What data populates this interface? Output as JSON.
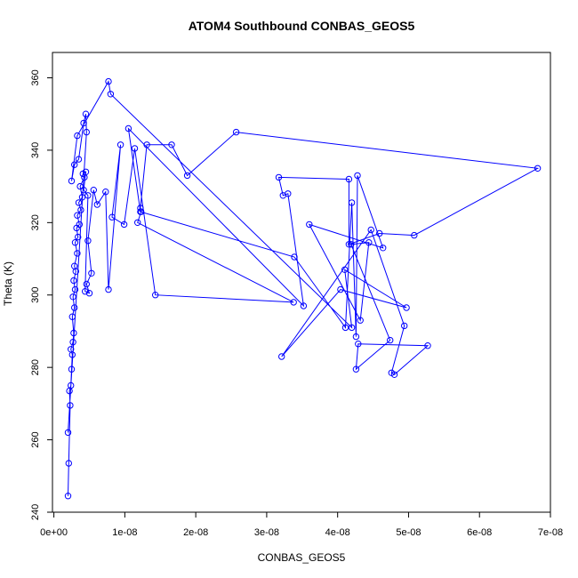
{
  "chart_data": {
    "type": "line",
    "title": "ATOM4 Southbound CONBAS_GEOS5",
    "xlabel": "CONBAS_GEOS5",
    "ylabel": "Theta (K)",
    "xlim": [
      -2e-10,
      7e-08
    ],
    "ylim": [
      240,
      367
    ],
    "xticks": [
      0,
      1e-08,
      2e-08,
      3e-08,
      4e-08,
      5e-08,
      6e-08,
      7e-08
    ],
    "xtick_labels": [
      "0e+00",
      "1e-08",
      "2e-08",
      "3e-08",
      "4e-08",
      "5e-08",
      "6e-08",
      "7e-08"
    ],
    "yticks": [
      240,
      260,
      280,
      300,
      320,
      340,
      360
    ],
    "ytick_labels": [
      "240",
      "260",
      "280",
      "300",
      "320",
      "340",
      "360"
    ],
    "grid": false,
    "marker": "open-circle",
    "series": [
      {
        "color": "#0000ff",
        "x": [
          2e-09,
          2.1e-09,
          2.3e-09,
          2.2e-09,
          2.4e-09,
          2.5e-09,
          2.6e-09,
          2.4e-09,
          2.7e-09,
          2.8e-09,
          2.6e-09,
          2.9e-09,
          2.7e-09,
          3e-09,
          2.8e-09,
          3.1e-09,
          2.9e-09,
          3.3e-09,
          3e-09,
          3.4e-09,
          3.2e-09,
          3.6e-09,
          3.3e-09,
          3.8e-09,
          3.5e-09,
          4e-09,
          3.7e-09,
          4.3e-09,
          4.1e-09,
          4.5e-09,
          4.2e-09,
          4.8e-09,
          4.4e-09,
          5e-09,
          4.6e-09,
          5.3e-09,
          4.8e-09,
          5.6e-09,
          6.1e-09,
          7.3e-09,
          7.7e-09,
          9.4e-09,
          8.2e-09,
          9.9e-09,
          1.14e-08,
          1.43e-08,
          3.38e-08,
          1.18e-08,
          1.23e-08,
          1.22e-08,
          1.31e-08,
          1.66e-08,
          1.88e-08,
          2.57e-08,
          6.82e-08,
          5.08e-08,
          4.59e-08,
          4.16e-08,
          4.16e-08,
          3.17e-08,
          3.23e-08,
          3.3e-08,
          3.52e-08,
          1.05e-08,
          1.22e-08,
          3.39e-08,
          4.11e-08,
          4.2e-08,
          4.26e-08,
          4.28e-08,
          4.64e-08,
          3.6e-08,
          4.32e-08,
          4.44e-08,
          4.19e-08,
          4.74e-08,
          4.26e-08,
          4.29e-08,
          5.27e-08,
          4.8e-08,
          4.76e-08,
          4.94e-08,
          4.47e-08,
          3.21e-08,
          4.04e-08,
          4.97e-08,
          4.1e-08,
          4.2e-08,
          8e-09,
          7.7e-09,
          3.3e-09,
          2.5e-09,
          2.9e-09,
          3.5e-09,
          4.2e-09,
          4.5e-09,
          4.6e-09,
          2e-09
        ],
        "y": [
          244.5,
          253.5,
          269.5,
          273.5,
          275,
          279.5,
          283.5,
          285,
          287,
          289.5,
          294,
          296.5,
          299.5,
          301.5,
          304,
          306.5,
          308,
          311.5,
          314.5,
          316,
          318.5,
          319.5,
          322,
          323.5,
          325.5,
          327,
          330,
          332.5,
          333.5,
          334,
          329,
          327.5,
          301,
          300.5,
          303,
          306,
          315,
          329,
          325,
          328.5,
          301.5,
          341.5,
          321.5,
          319.5,
          340.5,
          300,
          298,
          320,
          323,
          324,
          341.5,
          341.5,
          333,
          345,
          335,
          316.5,
          317,
          314,
          332,
          332.5,
          327.5,
          328,
          297,
          346,
          323,
          310.5,
          291,
          325.5,
          288.5,
          333,
          313,
          319.5,
          293,
          314.5,
          314,
          287.5,
          279.5,
          286.5,
          286,
          278,
          278.5,
          291.5,
          318,
          283,
          301.5,
          296.5,
          307,
          291,
          355.5,
          359,
          344,
          331.5,
          336,
          337.5,
          347.5,
          350,
          345,
          262
        ]
      }
    ]
  }
}
